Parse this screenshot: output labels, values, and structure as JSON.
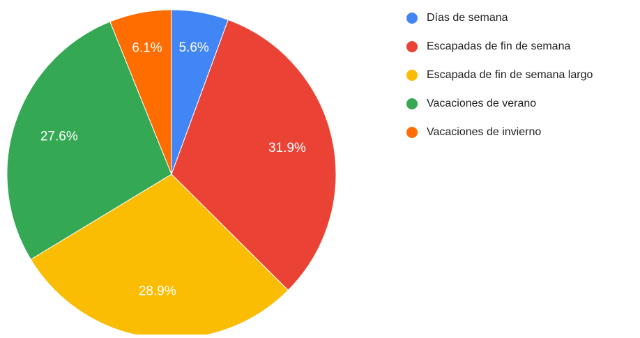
{
  "chart_data": {
    "type": "pie",
    "categories": [
      "Días de semana",
      "Escapadas de fin de semana",
      "Escapada de fin de semana largo",
      "Vacaciones de verano",
      "Vacaciones de invierno"
    ],
    "values": [
      5.6,
      31.9,
      28.9,
      27.6,
      6.1
    ],
    "value_labels": [
      "5.6%",
      "31.9%",
      "28.9%",
      "27.6%",
      "6.1%"
    ],
    "colors": [
      "#4285f4",
      "#ea4335",
      "#fbbc04",
      "#34a853",
      "#ff6d01"
    ],
    "legend": "right"
  }
}
